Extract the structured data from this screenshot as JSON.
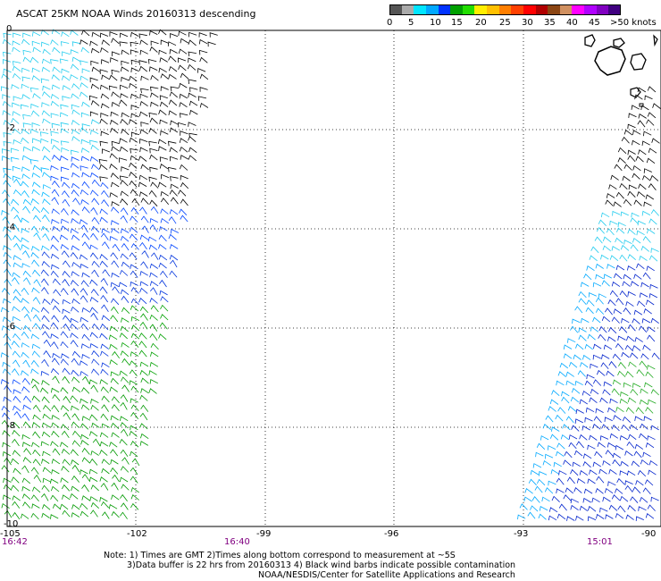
{
  "title": "ASCAT 25KM NOAA Winds 20160313 descending",
  "colorbar": {
    "labels": [
      "0",
      "5",
      "10",
      "15",
      "20",
      "25",
      "30",
      "35",
      "40",
      "45",
      ">50 knots"
    ],
    "colors": [
      "#555555",
      "#aaaaaa",
      "#00e5ff",
      "#00a8ff",
      "#0033ff",
      "#00a000",
      "#22dd00",
      "#ffee00",
      "#ffc000",
      "#ff7f00",
      "#ff4000",
      "#ff0000",
      "#b00000",
      "#8b4513",
      "#d09060",
      "#ff00ff",
      "#b000ff",
      "#8000c0",
      "#400080"
    ]
  },
  "axes": {
    "lat_labels": [
      "0",
      "-2",
      "-4",
      "-6",
      "-8",
      "-10"
    ],
    "lon_labels": [
      "-105",
      "-102",
      "-99",
      "-96",
      "-93",
      "-90"
    ]
  },
  "times": [
    "16:42",
    "16:40",
    "15:01"
  ],
  "notes": [
    "Note: 1) Times are GMT 2)Times along bottom correspond to measurement at ~5S",
    "3)Data buffer is 22 hrs from 20160313 4) Black wind barbs indicate possible contamination",
    "NOAA/NESDIS/Center for Satellite Applications and Research"
  ],
  "swaths": [
    {
      "name": "western-swath",
      "time": "16:42"
    },
    {
      "name": "eastern-swath",
      "time": "15:01"
    }
  ]
}
